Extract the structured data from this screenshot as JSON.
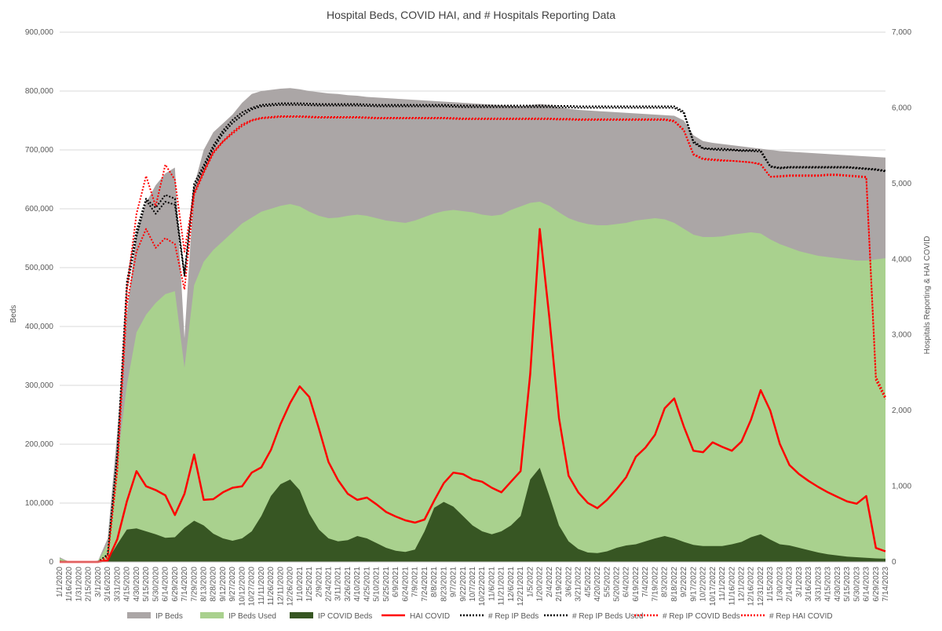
{
  "chart_data": {
    "type": "area",
    "title": "Hospital Beds, COVID HAI, and # Hospitals Reporting Data",
    "ylabel": "Beds",
    "y2label": "Hospitals Reporting & HAI  COVID",
    "ylim": [
      0,
      900000
    ],
    "y2lim": [
      0,
      7000
    ],
    "yticks": [
      "0",
      "100,000",
      "200,000",
      "300,000",
      "400,000",
      "500,000",
      "600,000",
      "700,000",
      "800,000",
      "900,000"
    ],
    "y2ticks": [
      "0",
      "1,000",
      "2,000",
      "3,000",
      "4,000",
      "5,000",
      "6,000",
      "7,000"
    ],
    "grid": true,
    "legend_position": "bottom",
    "colors": {
      "ip_beds": "#aba6a6",
      "ip_beds_used": "#a9d18e",
      "ip_covid_beds": "#375623",
      "hai_covid": "#ff0000",
      "rep_ip_beds": "#000000",
      "rep_ip_beds_used": "#000000",
      "rep_ip_covid_beds": "#ff0000",
      "rep_hai_covid": "#ff0000"
    },
    "x_dates": [
      "1/1/2020",
      "1/16/2020",
      "1/31/2020",
      "2/15/2020",
      "3/1/2020",
      "3/16/2020",
      "3/31/2020",
      "4/15/2020",
      "4/30/2020",
      "5/15/2020",
      "5/30/2020",
      "6/14/2020",
      "6/29/2020",
      "7/14/2020",
      "7/29/2020",
      "8/13/2020",
      "8/28/2020",
      "9/12/2020",
      "9/27/2020",
      "10/12/2020",
      "10/27/2020",
      "11/11/2020",
      "11/26/2020",
      "12/11/2020",
      "12/26/2020",
      "1/10/2021",
      "1/25/2021",
      "2/9/2021",
      "2/24/2021",
      "3/11/2021",
      "3/26/2021",
      "4/10/2021",
      "4/25/2021",
      "5/10/2021",
      "5/25/2021",
      "6/9/2021",
      "6/24/2021",
      "7/9/2021",
      "7/24/2021",
      "8/8/2021",
      "8/23/2021",
      "9/7/2021",
      "9/22/2021",
      "10/7/2021",
      "10/22/2021",
      "11/6/2021",
      "11/21/2021",
      "12/6/2021",
      "12/21/2021",
      "1/5/2022",
      "1/20/2022",
      "2/4/2022",
      "2/19/2022",
      "3/6/2022",
      "3/21/2022",
      "4/5/2022",
      "4/20/2022",
      "5/5/2022",
      "5/20/2022",
      "6/4/2022",
      "6/19/2022",
      "7/4/2022",
      "7/19/2022",
      "8/3/2022",
      "8/18/2022",
      "9/2/2022",
      "9/17/2022",
      "10/2/2022",
      "10/17/2022",
      "11/1/2022",
      "11/16/2022",
      "12/1/2022",
      "12/16/2022",
      "12/31/2022",
      "1/15/2023",
      "1/30/2023",
      "2/14/2023",
      "3/1/2023",
      "3/16/2023",
      "3/31/2023",
      "4/15/2023",
      "4/30/2023",
      "5/15/2023",
      "5/30/2023",
      "6/14/2023",
      "6/29/2023",
      "7/14/2023"
    ],
    "series": [
      {
        "name": "IP Beds",
        "kind": "area",
        "axis": "left",
        "color": "#aba6a6",
        "values": [
          8000,
          0,
          0,
          0,
          2000,
          40000,
          220000,
          420000,
          560000,
          610000,
          640000,
          660000,
          670000,
          380000,
          640000,
          700000,
          730000,
          745000,
          760000,
          780000,
          795000,
          800000,
          802000,
          804000,
          805000,
          803000,
          800000,
          798000,
          796000,
          795000,
          793000,
          792000,
          790000,
          789000,
          788000,
          787000,
          786000,
          785000,
          784000,
          783000,
          782000,
          781000,
          780000,
          779000,
          778000,
          777000,
          776000,
          775000,
          774000,
          776000,
          778000,
          776000,
          772000,
          770000,
          768000,
          767000,
          766000,
          765000,
          764000,
          763000,
          762000,
          761000,
          760000,
          759000,
          758000,
          750000,
          725000,
          715000,
          712000,
          710000,
          708000,
          706000,
          704000,
          702000,
          700000,
          698000,
          697000,
          696000,
          695000,
          694000,
          693000,
          692000,
          691000,
          690000,
          689000,
          688000,
          687000
        ]
      },
      {
        "name": "IP Beds Used",
        "kind": "area",
        "axis": "left",
        "color": "#a9d18e",
        "values": [
          6000,
          0,
          0,
          0,
          1500,
          30000,
          170000,
          300000,
          390000,
          420000,
          440000,
          455000,
          460000,
          330000,
          470000,
          510000,
          530000,
          545000,
          560000,
          575000,
          585000,
          595000,
          600000,
          605000,
          608000,
          604000,
          595000,
          588000,
          584000,
          585000,
          588000,
          590000,
          588000,
          584000,
          580000,
          578000,
          576000,
          580000,
          586000,
          592000,
          596000,
          598000,
          596000,
          594000,
          590000,
          588000,
          590000,
          598000,
          604000,
          610000,
          612000,
          605000,
          594000,
          584000,
          578000,
          574000,
          572000,
          572000,
          574000,
          576000,
          580000,
          582000,
          584000,
          582000,
          576000,
          566000,
          556000,
          552000,
          552000,
          553000,
          556000,
          558000,
          560000,
          558000,
          548000,
          540000,
          534000,
          528000,
          524000,
          520000,
          518000,
          516000,
          514000,
          512000,
          512000,
          514000,
          516000
        ]
      },
      {
        "name": "IP COVID Beds",
        "kind": "area",
        "axis": "left",
        "color": "#375623",
        "values": [
          2000,
          0,
          0,
          0,
          0,
          3000,
          30000,
          55000,
          57000,
          52000,
          47000,
          41000,
          42000,
          58000,
          70000,
          62000,
          48000,
          40000,
          36000,
          40000,
          52000,
          78000,
          112000,
          132000,
          140000,
          122000,
          82000,
          55000,
          40000,
          35000,
          37000,
          44000,
          40000,
          32000,
          24000,
          19000,
          17000,
          21000,
          52000,
          92000,
          102000,
          94000,
          78000,
          62000,
          52000,
          47000,
          52000,
          62000,
          78000,
          140000,
          160000,
          112000,
          62000,
          35000,
          22000,
          16000,
          15000,
          18000,
          24000,
          28000,
          30000,
          35000,
          40000,
          44000,
          40000,
          34000,
          29000,
          27000,
          27000,
          27000,
          30000,
          34000,
          42000,
          47000,
          38000,
          30000,
          28000,
          24000,
          20000,
          16000,
          13000,
          11000,
          9000,
          8000,
          7000,
          6000,
          5500
        ]
      },
      {
        "name": "HAI COVID",
        "kind": "line",
        "axis": "right",
        "color": "#ff0000",
        "values": [
          0,
          0,
          0,
          0,
          0,
          20,
          300,
          800,
          1200,
          1000,
          950,
          880,
          620,
          900,
          1420,
          820,
          830,
          920,
          980,
          1000,
          1180,
          1250,
          1480,
          1820,
          2100,
          2320,
          2180,
          1760,
          1320,
          1080,
          900,
          820,
          850,
          760,
          660,
          600,
          550,
          520,
          560,
          810,
          1040,
          1180,
          1160,
          1090,
          1060,
          980,
          920,
          1060,
          1200,
          2480,
          4400,
          3220,
          1900,
          1140,
          920,
          780,
          710,
          820,
          960,
          1120,
          1390,
          1510,
          1680,
          2030,
          2160,
          1790,
          1470,
          1450,
          1580,
          1520,
          1470,
          1590,
          1880,
          2270,
          2000,
          1560,
          1280,
          1160,
          1070,
          990,
          920,
          860,
          800,
          770,
          870,
          185,
          140
        ]
      },
      {
        "name": "# Rep IP Beds",
        "kind": "line",
        "dash": true,
        "axis": "right",
        "color": "#000000",
        "values": [
          0,
          0,
          0,
          0,
          0,
          100,
          1450,
          3700,
          4380,
          4800,
          4680,
          4850,
          4800,
          3800,
          5000,
          5240,
          5500,
          5700,
          5840,
          5940,
          6000,
          6040,
          6050,
          6060,
          6060,
          6060,
          6055,
          6050,
          6050,
          6050,
          6050,
          6050,
          6045,
          6040,
          6040,
          6040,
          6040,
          6040,
          6040,
          6040,
          6040,
          6035,
          6030,
          6030,
          6030,
          6030,
          6030,
          6030,
          6030,
          6030,
          6030,
          6030,
          6025,
          6025,
          6020,
          6020,
          6020,
          6020,
          6020,
          6020,
          6020,
          6020,
          6020,
          6020,
          6020,
          5950,
          5560,
          5470,
          5460,
          5460,
          5450,
          5440,
          5440,
          5440,
          5230,
          5210,
          5220,
          5220,
          5220,
          5220,
          5220,
          5220,
          5220,
          5210,
          5200,
          5190,
          5170
        ]
      },
      {
        "name": "# Rep IP Beds Used",
        "kind": "line",
        "dash": true,
        "axis": "right",
        "color": "#000000",
        "values": [
          0,
          0,
          0,
          0,
          0,
          90,
          1400,
          3600,
          4300,
          4780,
          4600,
          4760,
          4720,
          3780,
          4940,
          5200,
          5460,
          5660,
          5800,
          5900,
          5980,
          6020,
          6030,
          6040,
          6040,
          6040,
          6035,
          6030,
          6030,
          6030,
          6030,
          6030,
          6025,
          6020,
          6020,
          6020,
          6020,
          6020,
          6020,
          6020,
          6020,
          6015,
          6010,
          6010,
          6010,
          6010,
          6010,
          6010,
          6010,
          6010,
          6010,
          6010,
          6005,
          6005,
          6000,
          6000,
          6000,
          6000,
          6000,
          6000,
          6000,
          6000,
          6000,
          6000,
          6000,
          5930,
          5540,
          5460,
          5450,
          5440,
          5440,
          5430,
          5430,
          5420,
          5220,
          5200,
          5210,
          5210,
          5210,
          5210,
          5210,
          5210,
          5210,
          5200,
          5190,
          5180,
          5160
        ]
      },
      {
        "name": "# Rep IP COVID Beds",
        "kind": "line",
        "dash": true,
        "axis": "right",
        "color": "#ff0000",
        "values": [
          0,
          0,
          0,
          0,
          0,
          60,
          1200,
          3400,
          4100,
          4400,
          4150,
          4280,
          4200,
          3600,
          4850,
          5140,
          5400,
          5550,
          5660,
          5760,
          5830,
          5860,
          5870,
          5880,
          5880,
          5880,
          5875,
          5870,
          5870,
          5870,
          5870,
          5870,
          5865,
          5860,
          5860,
          5860,
          5860,
          5860,
          5860,
          5860,
          5860,
          5855,
          5850,
          5850,
          5850,
          5850,
          5850,
          5850,
          5850,
          5850,
          5850,
          5850,
          5845,
          5845,
          5840,
          5840,
          5840,
          5840,
          5840,
          5840,
          5840,
          5840,
          5840,
          5840,
          5820,
          5700,
          5380,
          5320,
          5310,
          5300,
          5300,
          5290,
          5280,
          5250,
          5090,
          5090,
          5100,
          5100,
          5100,
          5100,
          5110,
          5110,
          5100,
          5090,
          5080,
          2400,
          2150
        ]
      },
      {
        "name": "# Rep HAI COVID",
        "kind": "line",
        "dash": true,
        "axis": "right",
        "color": "#ff0000",
        "values": [
          0,
          0,
          0,
          0,
          0,
          70,
          1250,
          3600,
          4600,
          5100,
          4700,
          5250,
          5050,
          4100,
          4880,
          5160,
          5420,
          5560,
          5680,
          5780,
          5840,
          5870,
          5880,
          5890,
          5890,
          5890,
          5885,
          5880,
          5880,
          5880,
          5880,
          5880,
          5875,
          5870,
          5870,
          5870,
          5870,
          5870,
          5870,
          5870,
          5870,
          5865,
          5860,
          5860,
          5860,
          5860,
          5860,
          5860,
          5860,
          5860,
          5860,
          5860,
          5855,
          5855,
          5850,
          5850,
          5850,
          5850,
          5850,
          5850,
          5850,
          5850,
          5850,
          5850,
          5830,
          5710,
          5390,
          5330,
          5320,
          5310,
          5300,
          5290,
          5280,
          5260,
          5090,
          5100,
          5110,
          5110,
          5110,
          5110,
          5120,
          5120,
          5110,
          5100,
          5090,
          2450,
          2180
        ]
      }
    ]
  }
}
